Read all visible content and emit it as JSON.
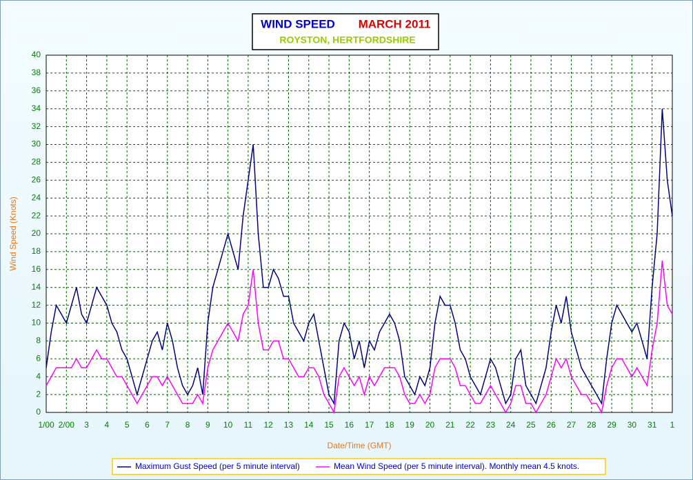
{
  "chart_data": {
    "type": "line",
    "title": "WIND SPEED",
    "title_period": "MARCH 2011",
    "subtitle": "ROYSTON, HERTFORDSHIRE",
    "x_label": "Date/Time (GMT)",
    "y_label": "Wind Speed (Knots)",
    "grid": true,
    "legend_position": "bottom",
    "xlim": [
      0,
      31
    ],
    "ylim": [
      0,
      40
    ],
    "yticks": [
      0,
      2,
      4,
      6,
      8,
      10,
      12,
      14,
      16,
      18,
      20,
      22,
      24,
      26,
      28,
      30,
      32,
      34,
      36,
      38,
      40
    ],
    "xticks": [
      {
        "value": 0,
        "label": "1/00"
      },
      {
        "value": 1,
        "label": "2/00"
      },
      {
        "value": 2,
        "label": "3"
      },
      {
        "value": 3,
        "label": "4"
      },
      {
        "value": 4,
        "label": "5"
      },
      {
        "value": 5,
        "label": "6"
      },
      {
        "value": 6,
        "label": "7"
      },
      {
        "value": 7,
        "label": "8"
      },
      {
        "value": 8,
        "label": "9"
      },
      {
        "value": 9,
        "label": "10"
      },
      {
        "value": 10,
        "label": "11"
      },
      {
        "value": 11,
        "label": "12"
      },
      {
        "value": 12,
        "label": "13"
      },
      {
        "value": 13,
        "label": "14"
      },
      {
        "value": 14,
        "label": "15"
      },
      {
        "value": 15,
        "label": "16"
      },
      {
        "value": 16,
        "label": "17"
      },
      {
        "value": 17,
        "label": "18"
      },
      {
        "value": 18,
        "label": "19"
      },
      {
        "value": 19,
        "label": "20"
      },
      {
        "value": 20,
        "label": "21"
      },
      {
        "value": 21,
        "label": "22"
      },
      {
        "value": 22,
        "label": "23"
      },
      {
        "value": 23,
        "label": "24"
      },
      {
        "value": 24,
        "label": "25"
      },
      {
        "value": 25,
        "label": "26"
      },
      {
        "value": 26,
        "label": "27"
      },
      {
        "value": 27,
        "label": "28"
      },
      {
        "value": 28,
        "label": "29"
      },
      {
        "value": 29,
        "label": "30"
      },
      {
        "value": 30,
        "label": "31"
      },
      {
        "value": 31,
        "label": "1"
      }
    ],
    "x": [
      0,
      0.25,
      0.5,
      0.75,
      1,
      1.25,
      1.5,
      1.75,
      2,
      2.25,
      2.5,
      2.75,
      3,
      3.25,
      3.5,
      3.75,
      4,
      4.25,
      4.5,
      4.75,
      5,
      5.25,
      5.5,
      5.75,
      6,
      6.25,
      6.5,
      6.75,
      7,
      7.25,
      7.5,
      7.75,
      8,
      8.25,
      8.5,
      8.75,
      9,
      9.25,
      9.5,
      9.75,
      10,
      10.25,
      10.5,
      10.75,
      11,
      11.25,
      11.5,
      11.75,
      12,
      12.25,
      12.5,
      12.75,
      13,
      13.25,
      13.5,
      13.75,
      14,
      14.25,
      14.5,
      14.75,
      15,
      15.25,
      15.5,
      15.75,
      16,
      16.25,
      16.5,
      16.75,
      17,
      17.25,
      17.5,
      17.75,
      18,
      18.25,
      18.5,
      18.75,
      19,
      19.25,
      19.5,
      19.75,
      20,
      20.25,
      20.5,
      20.75,
      21,
      21.25,
      21.5,
      21.75,
      22,
      22.25,
      22.5,
      22.75,
      23,
      23.25,
      23.5,
      23.75,
      24,
      24.25,
      24.5,
      24.75,
      25,
      25.25,
      25.5,
      25.75,
      26,
      26.25,
      26.5,
      26.75,
      27,
      27.25,
      27.5,
      27.75,
      28,
      28.25,
      28.5,
      28.75,
      29,
      29.25,
      29.5,
      29.75,
      30,
      30.25,
      30.5,
      30.75,
      31
    ],
    "series": [
      {
        "name": "Maximum Gust Speed (per 5 minute interval)",
        "color": "#000080",
        "values": [
          5,
          9,
          12,
          11,
          10,
          12,
          14,
          11,
          10,
          12,
          14,
          13,
          12,
          10,
          9,
          7,
          6,
          4,
          2,
          4,
          6,
          8,
          9,
          7,
          10,
          8,
          5,
          3,
          2,
          3,
          5,
          2,
          10,
          14,
          16,
          18,
          20,
          18,
          16,
          22,
          26,
          30,
          20,
          14,
          14,
          16,
          15,
          13,
          13,
          10,
          9,
          8,
          10,
          11,
          8,
          5,
          2,
          1,
          8,
          10,
          9,
          6,
          8,
          5,
          8,
          7,
          9,
          10,
          11,
          10,
          8,
          4,
          3,
          2,
          4,
          3,
          5,
          10,
          13,
          12,
          12,
          10,
          7,
          6,
          4,
          3,
          2,
          4,
          6,
          5,
          3,
          1,
          2,
          6,
          7,
          3,
          2,
          1,
          3,
          5,
          9,
          12,
          10,
          13,
          9,
          7,
          5,
          4,
          3,
          2,
          1,
          6,
          10,
          12,
          11,
          10,
          9,
          10,
          8,
          6,
          14,
          20,
          34,
          26,
          22
        ]
      },
      {
        "name": "Mean Wind Speed (per 5 minute interval). Monthly mean 4.5 knots.",
        "color": "#ff00ff",
        "values": [
          3,
          4,
          5,
          5,
          5,
          5,
          6,
          5,
          5,
          6,
          7,
          6,
          6,
          5,
          4,
          4,
          3,
          2,
          1,
          2,
          3,
          4,
          4,
          3,
          4,
          3,
          2,
          1,
          1,
          1,
          2,
          1,
          5,
          7,
          8,
          9,
          10,
          9,
          8,
          11,
          12,
          16,
          10,
          7,
          7,
          8,
          8,
          6,
          6,
          5,
          4,
          4,
          5,
          5,
          4,
          2,
          1,
          0,
          4,
          5,
          4,
          3,
          4,
          2,
          4,
          3,
          4,
          5,
          5,
          5,
          4,
          2,
          1,
          1,
          2,
          1,
          2,
          5,
          6,
          6,
          6,
          5,
          3,
          3,
          2,
          1,
          1,
          2,
          3,
          2,
          1,
          0,
          1,
          3,
          3,
          1,
          1,
          0,
          1,
          2,
          4,
          6,
          5,
          6,
          4,
          3,
          2,
          2,
          1,
          1,
          0,
          3,
          5,
          6,
          6,
          5,
          4,
          5,
          4,
          3,
          7,
          10,
          17,
          12,
          11
        ]
      }
    ]
  }
}
